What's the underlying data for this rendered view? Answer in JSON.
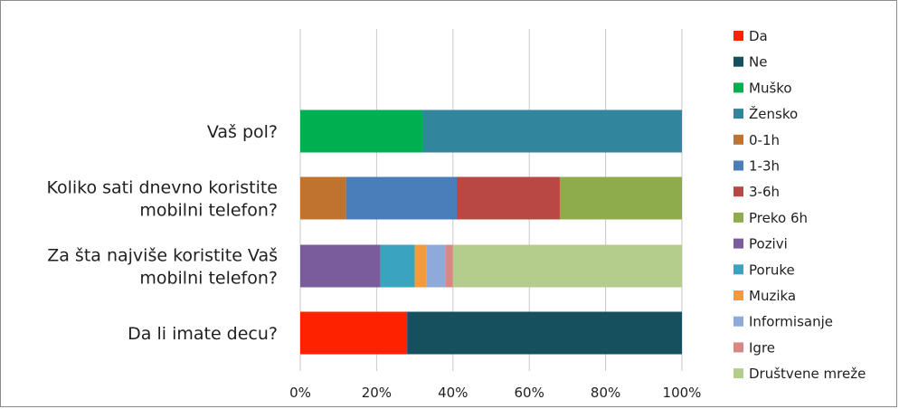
{
  "chart_data": {
    "type": "bar",
    "orientation": "horizontal",
    "stacked": "percent",
    "title": "",
    "xlabel": "",
    "ylabel": "",
    "xlim": [
      0,
      100
    ],
    "ticks": [
      "0%",
      "20%",
      "40%",
      "60%",
      "80%",
      "100%"
    ],
    "grid": true,
    "legend_position": "right",
    "categories": [
      {
        "lines": [
          "Vaš pol?"
        ],
        "segments": [
          {
            "name": "Muško",
            "value": 32,
            "color": "#00b050"
          },
          {
            "name": "Žensko",
            "value": 68,
            "color": "#31859c"
          }
        ]
      },
      {
        "lines": [
          "Koliko sati dnevno koristite",
          "mobilni telefon?"
        ],
        "segments": [
          {
            "name": "0-1h",
            "value": 12,
            "color": "#c0732f"
          },
          {
            "name": "1-3h",
            "value": 29,
            "color": "#4a7ebb"
          },
          {
            "name": "3-6h",
            "value": 27,
            "color": "#b94744"
          },
          {
            "name": "Preko 6h",
            "value": 32,
            "color": "#8fac4d"
          }
        ]
      },
      {
        "lines": [
          "Za šta najviše koristite Vaš",
          "mobilni telefon?"
        ],
        "segments": [
          {
            "name": "Pozivi",
            "value": 21,
            "color": "#7a5c9c"
          },
          {
            "name": "Poruke",
            "value": 9,
            "color": "#3aa4be"
          },
          {
            "name": "Muzika",
            "value": 3,
            "color": "#f59a3a"
          },
          {
            "name": "Informisanje",
            "value": 5,
            "color": "#8eaadb"
          },
          {
            "name": "Igre",
            "value": 2,
            "color": "#d98785"
          },
          {
            "name": "Društvene mreže",
            "value": 60,
            "color": "#b4cc8c"
          }
        ]
      },
      {
        "lines": [
          "Da li imate decu?"
        ],
        "segments": [
          {
            "name": "Da",
            "value": 28,
            "color": "#ff2200"
          },
          {
            "name": "Ne",
            "value": 72,
            "color": "#16505f"
          }
        ]
      }
    ],
    "legend": [
      {
        "name": "Da",
        "color": "#ff2200"
      },
      {
        "name": "Ne",
        "color": "#16505f"
      },
      {
        "name": "Muško",
        "color": "#00b050"
      },
      {
        "name": "Žensko",
        "color": "#31859c"
      },
      {
        "name": "0-1h",
        "color": "#c0732f"
      },
      {
        "name": "1-3h",
        "color": "#4a7ebb"
      },
      {
        "name": "3-6h",
        "color": "#b94744"
      },
      {
        "name": "Preko 6h",
        "color": "#8fac4d"
      },
      {
        "name": "Pozivi",
        "color": "#7a5c9c"
      },
      {
        "name": "Poruke",
        "color": "#3aa4be"
      },
      {
        "name": "Muzika",
        "color": "#f59a3a"
      },
      {
        "name": "Informisanje",
        "color": "#8eaadb"
      },
      {
        "name": "Igre",
        "color": "#d98785"
      },
      {
        "name": "Društvene mreže",
        "color": "#b4cc8c"
      }
    ],
    "gridline_color": "#c9c9c9"
  }
}
